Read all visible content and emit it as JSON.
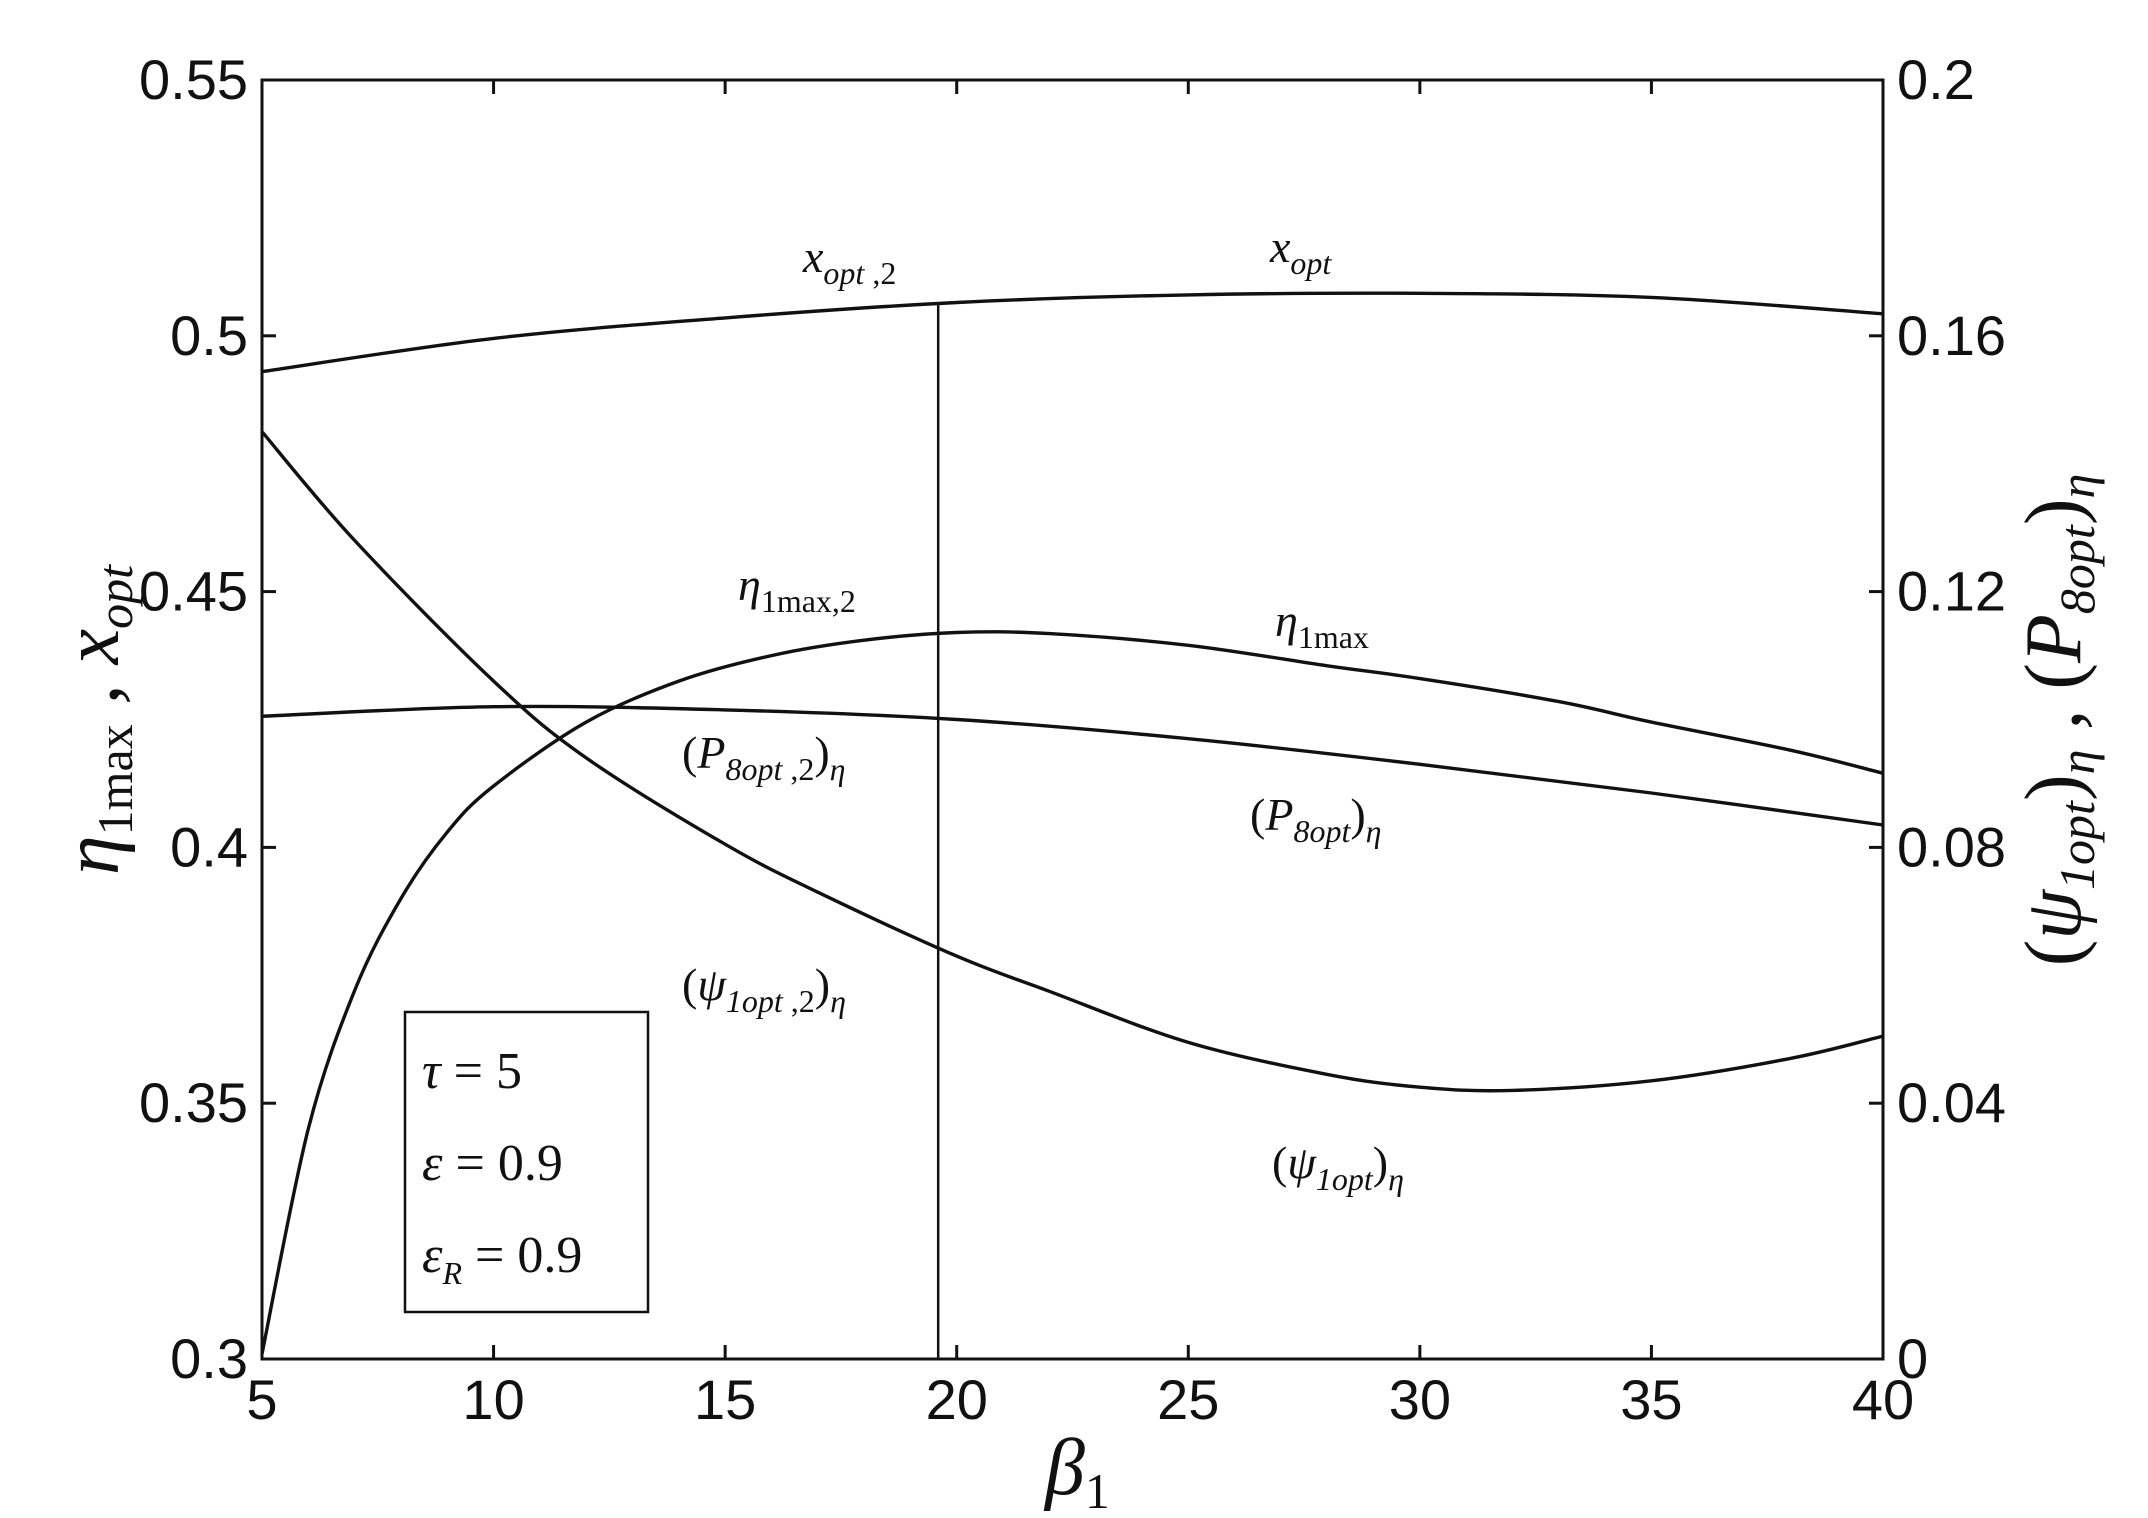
{
  "chart_data": {
    "type": "line",
    "xlabel": "β1",
    "ylabel_left": "η1max , x_opt",
    "ylabel_right": "(ψ1opt)η , (P8opt)η",
    "xlim": [
      5,
      40
    ],
    "ylim_left": [
      0.3,
      0.55
    ],
    "ylim_right": [
      0,
      0.2
    ],
    "grid": false,
    "x_ticks": [
      5,
      10,
      15,
      20,
      25,
      30,
      35,
      40
    ],
    "x_tick_labels": [
      "5",
      "10",
      "15",
      "20",
      "25",
      "30",
      "35",
      "40"
    ],
    "y_left_ticks": [
      0.3,
      0.35,
      0.4,
      0.45,
      0.5,
      0.55
    ],
    "y_left_tick_labels": [
      "0.3",
      "0.35",
      "0.4",
      "0.45",
      "0.5",
      "0.55"
    ],
    "y_right_ticks": [
      0,
      0.04,
      0.08,
      0.12,
      0.16,
      0.2
    ],
    "y_right_tick_labels": [
      "0",
      "0.04",
      "0.08",
      "0.12",
      "0.16",
      "0.2"
    ],
    "series": [
      {
        "name": "x_opt",
        "axis": "left",
        "x": [
          5,
          10,
          15,
          20,
          25,
          30,
          35,
          40
        ],
        "y": [
          0.493,
          0.4995,
          0.5035,
          0.5065,
          0.508,
          0.5083,
          0.5075,
          0.5043
        ]
      },
      {
        "name": "η1max",
        "axis": "left",
        "x": [
          5,
          6,
          7,
          8,
          9,
          10,
          12,
          14,
          16,
          18,
          20,
          22,
          25,
          28,
          30,
          33,
          35,
          38,
          40
        ],
        "y": [
          0.301,
          0.345,
          0.372,
          0.39,
          0.403,
          0.412,
          0.4245,
          0.4325,
          0.4375,
          0.4405,
          0.442,
          0.4418,
          0.4395,
          0.4355,
          0.433,
          0.4285,
          0.4245,
          0.419,
          0.4145
        ]
      },
      {
        "name": "(P8opt)η",
        "axis": "right",
        "x": [
          5,
          10,
          15,
          20,
          25,
          30,
          35,
          40
        ],
        "y": [
          0.1005,
          0.102,
          0.1015,
          0.1,
          0.097,
          0.093,
          0.0885,
          0.0835
        ]
      },
      {
        "name": "(ψ1opt)η",
        "axis": "right",
        "x": [
          5,
          7,
          10,
          12,
          15,
          17,
          20,
          22,
          25,
          28,
          30,
          32,
          35,
          38,
          40
        ],
        "y": [
          0.145,
          0.128,
          0.106,
          0.094,
          0.0805,
          0.073,
          0.063,
          0.0575,
          0.0495,
          0.0445,
          0.0425,
          0.042,
          0.0435,
          0.047,
          0.0505
        ]
      }
    ],
    "marker_line": {
      "x": 19.6
    },
    "annotations": {
      "x_opt_2": "x opt ,2",
      "x_opt": "x opt",
      "eta_2": "η 1max,2",
      "eta": "η 1max",
      "p8_2": "(P 8opt ,2 ) η",
      "p8": "(P 8opt ) η",
      "psi_2": "(ψ 1opt ,2 ) η",
      "psi": "(ψ 1opt ) η"
    },
    "legend_box": [
      "τ = 5",
      "ε = 0.9",
      "ε R = 0.9"
    ]
  }
}
